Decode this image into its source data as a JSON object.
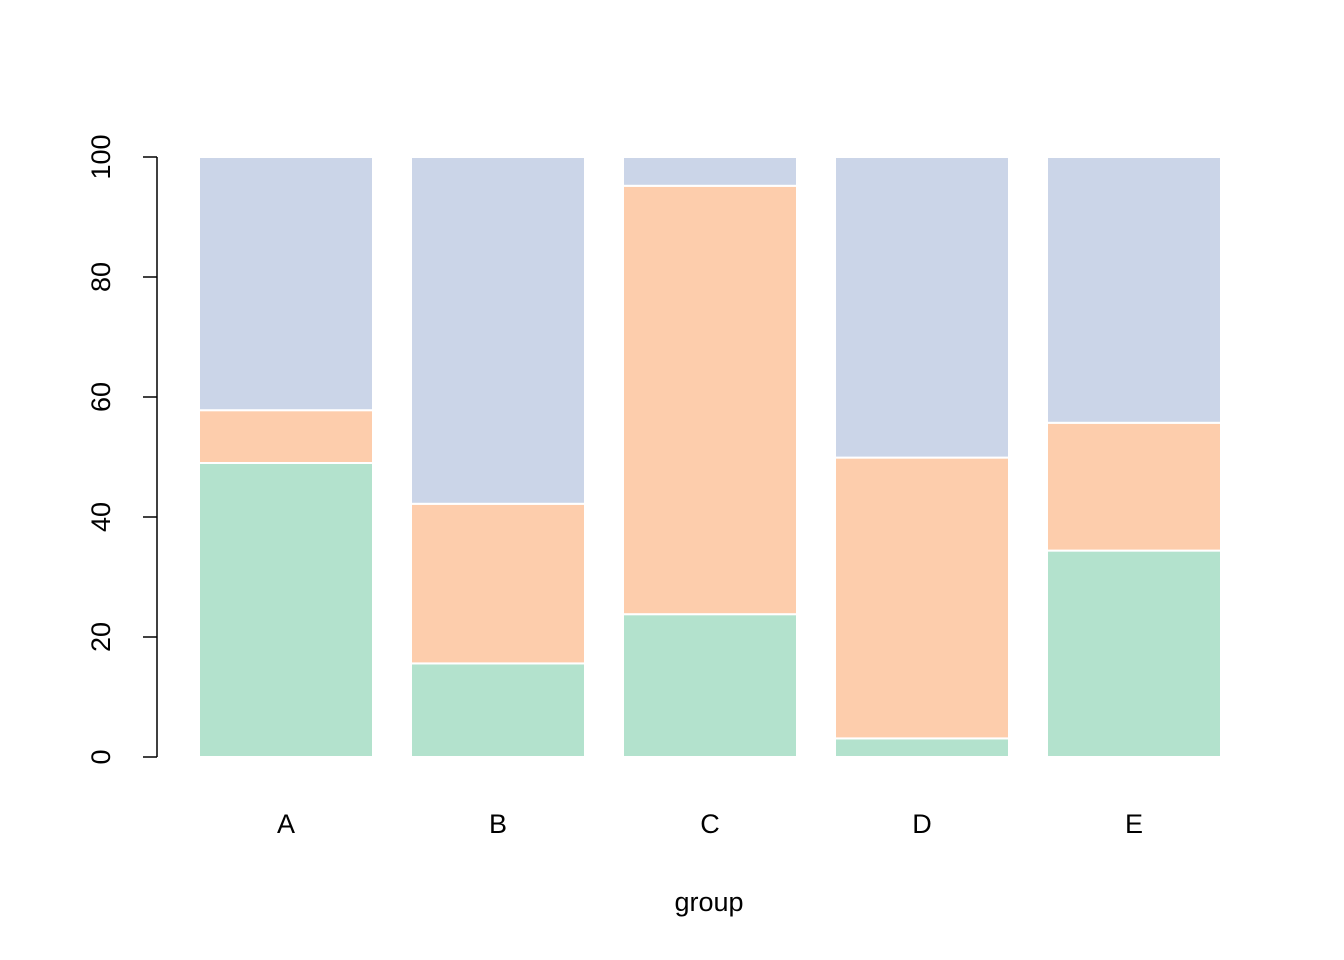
{
  "chart_data": {
    "type": "bar",
    "stacked": true,
    "title": "",
    "xlabel": "group",
    "ylabel": "",
    "ylim": [
      0,
      100
    ],
    "yticks": [
      0,
      20,
      40,
      60,
      80,
      100
    ],
    "categories": [
      "A",
      "B",
      "C",
      "D",
      "E"
    ],
    "series": [
      {
        "color": "#b3e2cd",
        "values": [
          49,
          15.6,
          23.8,
          3.1,
          34.4
        ]
      },
      {
        "color": "#fdcdac",
        "values": [
          8.8,
          26.6,
          71.4,
          46.8,
          21.3
        ]
      },
      {
        "color": "#cbd5e8",
        "values": [
          42.2,
          57.8,
          4.8,
          50.1,
          44.3
        ]
      }
    ],
    "grid": false,
    "legend": "none"
  }
}
